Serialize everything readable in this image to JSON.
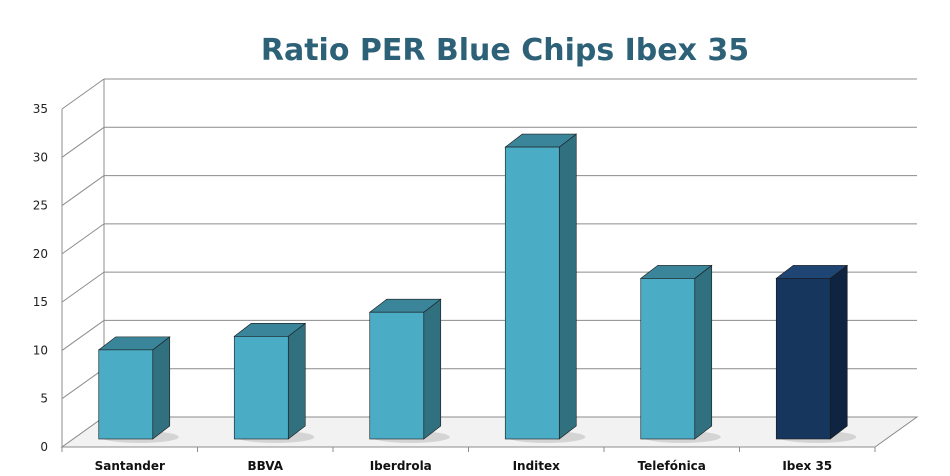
{
  "chart_data": {
    "type": "bar",
    "title": "Ratio PER Blue Chips Ibex 35",
    "xlabel": "",
    "ylabel": "",
    "categories": [
      "Santander",
      "BBVA",
      "Iberdrola",
      "Inditex",
      "Telefónica",
      "Ibex 35"
    ],
    "values": [
      11.3,
      12.7,
      15.2,
      32.3,
      18.7,
      18.7
    ],
    "ylim": [
      0,
      35
    ],
    "yticks": [
      0,
      5,
      10,
      15,
      20,
      25,
      30,
      35
    ],
    "grid": true,
    "legend": "none",
    "colors": {
      "bar_front": "#4bacc6",
      "bar_side": "#31707f",
      "bar_top": "#3a8599",
      "highlight_front": "#17365d",
      "highlight_side": "#0f2440",
      "highlight_top": "#1f4574",
      "gridline": "#8c8c8c",
      "title": "#2c6177"
    },
    "highlight_category": "Ibex 35"
  }
}
